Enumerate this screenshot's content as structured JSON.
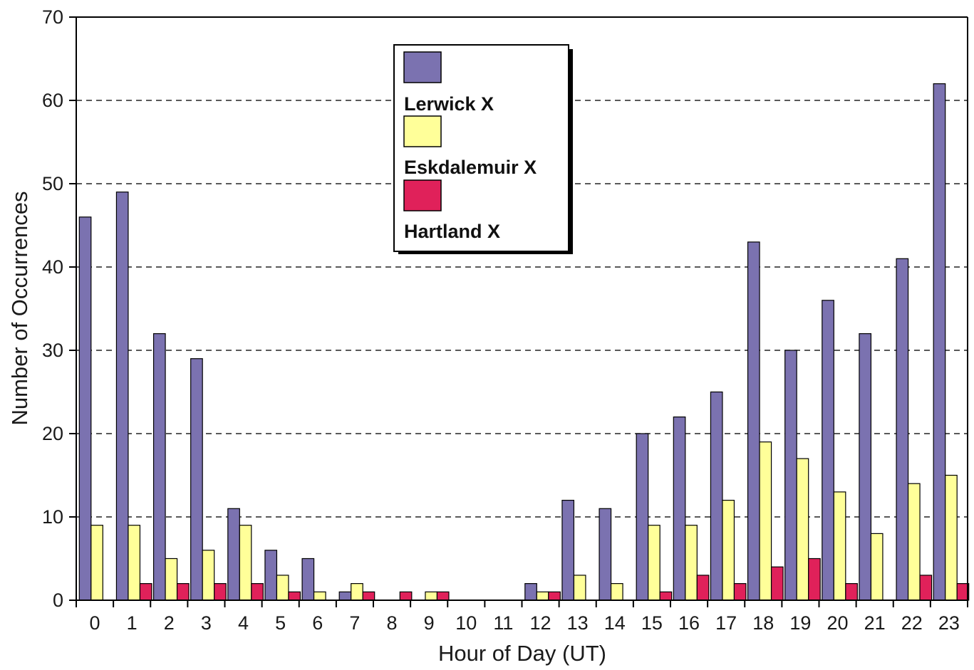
{
  "chart_data": {
    "type": "bar",
    "title": "",
    "xlabel": "Hour of Day (UT)",
    "ylabel": "Number of Occurrences",
    "ylim": [
      0,
      70
    ],
    "yticks": [
      0,
      10,
      20,
      30,
      40,
      50,
      60,
      70
    ],
    "grid": "horizontal dashed",
    "legend_position": "top-center",
    "categories": [
      "0",
      "1",
      "2",
      "3",
      "4",
      "5",
      "6",
      "7",
      "8",
      "9",
      "10",
      "11",
      "12",
      "13",
      "14",
      "15",
      "16",
      "17",
      "18",
      "19",
      "20",
      "21",
      "22",
      "23"
    ],
    "series": [
      {
        "name": "Lerwick X",
        "color": "#7b72b0",
        "values": [
          46,
          49,
          32,
          29,
          11,
          6,
          5,
          1,
          0,
          0,
          0,
          0,
          2,
          12,
          11,
          20,
          22,
          25,
          43,
          30,
          36,
          32,
          41,
          62
        ]
      },
      {
        "name": "Eskdalemuir X",
        "color": "#ffff99",
        "values": [
          9,
          9,
          5,
          6,
          9,
          3,
          1,
          2,
          0,
          1,
          0,
          0,
          1,
          3,
          2,
          9,
          9,
          12,
          19,
          17,
          13,
          8,
          14,
          15
        ]
      },
      {
        "name": "Hartland X",
        "color": "#e0215a",
        "values": [
          0,
          2,
          2,
          2,
          2,
          1,
          0,
          1,
          1,
          1,
          0,
          0,
          1,
          0,
          0,
          1,
          3,
          2,
          4,
          5,
          2,
          0,
          3,
          2
        ]
      }
    ]
  }
}
